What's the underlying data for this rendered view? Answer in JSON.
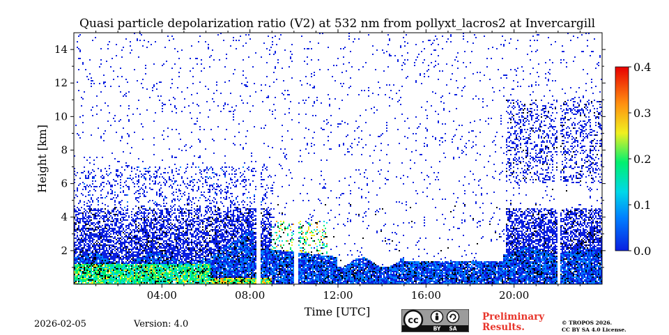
{
  "chart_data": {
    "type": "heatmap",
    "title": "Quasi particle depolarization ratio (V2) at 532 nm from pollyxt_lacros2 at Invercargill",
    "xlabel": "Time [UTC]",
    "ylabel": "Height [km]",
    "xlim_hours": [
      0,
      24
    ],
    "ylim_km": [
      0,
      15
    ],
    "x_ticks": [
      {
        "hour": 4,
        "label": "04:00"
      },
      {
        "hour": 8,
        "label": "08:00"
      },
      {
        "hour": 12,
        "label": "12:00"
      },
      {
        "hour": 16,
        "label": "16:00"
      },
      {
        "hour": 20,
        "label": "20:00"
      }
    ],
    "y_ticks": [
      {
        "value": 2,
        "label": "2"
      },
      {
        "value": 4,
        "label": "4"
      },
      {
        "value": 6,
        "label": "6"
      },
      {
        "value": 8,
        "label": "8"
      },
      {
        "value": 10,
        "label": "10"
      },
      {
        "value": 12,
        "label": "12"
      },
      {
        "value": 14,
        "label": "14"
      }
    ],
    "colorbar": {
      "range": [
        0.0,
        0.4
      ],
      "ticks": [
        "0.0",
        "0.1",
        "0.2",
        "0.3",
        "0.4"
      ],
      "colormap": [
        "#0a1fe0",
        "#0080ff",
        "#00d8e8",
        "#00f070",
        "#f0f020",
        "#ff9010",
        "#e80000"
      ]
    },
    "features": [
      {
        "name": "boundary layer aerosol",
        "start_hour": 0,
        "end_hour": 24,
        "top_km": 1.8,
        "typical_ratio": 0.05
      },
      {
        "name": "elevated dust-like layer",
        "start_hour": 0,
        "end_hour": 9,
        "top_km": 4.5,
        "typical_ratio": 0.02
      },
      {
        "name": "high-depol near-surface layer",
        "start_hour": 0,
        "end_hour": 6,
        "top_km": 1.2,
        "typical_ratio": 0.18
      },
      {
        "name": "cirrus",
        "start_hour": 19.7,
        "end_hour": 24,
        "base_km": 6,
        "top_km": 11,
        "typical_ratio": 0.02
      },
      {
        "name": "low clouds",
        "start_hour": 8,
        "end_hour": 11.5,
        "top_km": 3.8,
        "typical_ratio": 0.2
      }
    ],
    "data_gaps_hours": [
      {
        "start": 8.3,
        "end": 8.5
      },
      {
        "start": 10.0,
        "end": 10.2
      },
      {
        "start": 22.0,
        "end": 22.1
      }
    ]
  },
  "footer": {
    "date": "2026-02-05",
    "version": "Version: 4.0",
    "preliminary_line1": "Preliminary",
    "preliminary_line2": "Results.",
    "copyright_line1": "© TROPOS 2026.",
    "copyright_line2": "CC BY SA 4.0 License.",
    "license_badge": {
      "main": "cc",
      "by": "BY",
      "sa": "SA"
    }
  },
  "colors": {
    "accent_red": "#e8352b",
    "badge_grey": "#9c9c9c",
    "badge_dark": "#111111"
  }
}
